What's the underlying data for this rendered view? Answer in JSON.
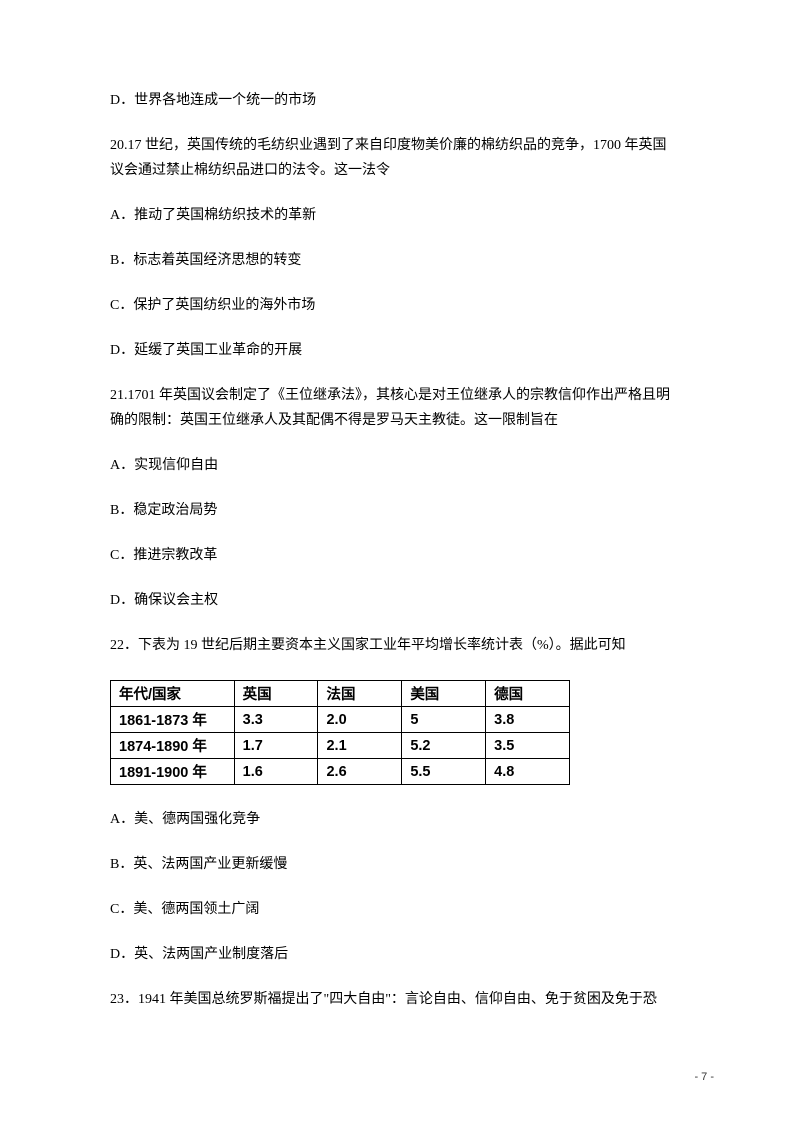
{
  "lines": {
    "q19_d": "D．世界各地连成一个统一的市场",
    "q20_stem1": "20.17 世纪，英国传统的毛纺织业遇到了来自印度物美价廉的棉纺织品的竞争，1700 年英国",
    "q20_stem2": "议会通过禁止棉纺织品进口的法令。这一法令",
    "q20_a": "A．推动了英国棉纺织技术的革新",
    "q20_b": "B．标志着英国经济思想的转变",
    "q20_c": "C．保护了英国纺织业的海外市场",
    "q20_d": "D．延缓了英国工业革命的开展",
    "q21_stem1": "21.1701 年英国议会制定了《王位继承法》，其核心是对王位继承人的宗教信仰作出严格且明",
    "q21_stem2": "确的限制：英国王位继承人及其配偶不得是罗马天主教徒。这一限制旨在",
    "q21_a": "A．实现信仰自由",
    "q21_b": "B．稳定政治局势",
    "q21_c": "C．推进宗教改革",
    "q21_d": "D．确保议会主权",
    "q22_stem": "22．下表为 19 世纪后期主要资本主义国家工业年平均增长率统计表（%）。据此可知",
    "q22_a": "A．美、德两国强化竞争",
    "q22_b": "B．英、法两国产业更新缓慢",
    "q22_c": "C．美、德两国领土广阔",
    "q22_d": "D．英、法两国产业制度落后",
    "q23_stem": "23．1941 年美国总统罗斯福提出了\"四大自由\"：言论自由、信仰自由、免于贫困及免于恐"
  },
  "table": {
    "widths": [
      "118px",
      "80px",
      "80px",
      "80px",
      "80px"
    ],
    "header": [
      "年代/国家",
      "英国",
      "法国",
      "美国",
      "德国"
    ],
    "rows": [
      [
        "1861-1873 年",
        "3.3",
        "2.0",
        "5",
        "3.8"
      ],
      [
        "1874-1890 年",
        "1.7",
        "2.1",
        "5.2",
        "3.5"
      ],
      [
        "1891-1900 年",
        "1.6",
        "2.6",
        "5.5",
        "4.8"
      ]
    ]
  },
  "page_num": "- 7 -"
}
